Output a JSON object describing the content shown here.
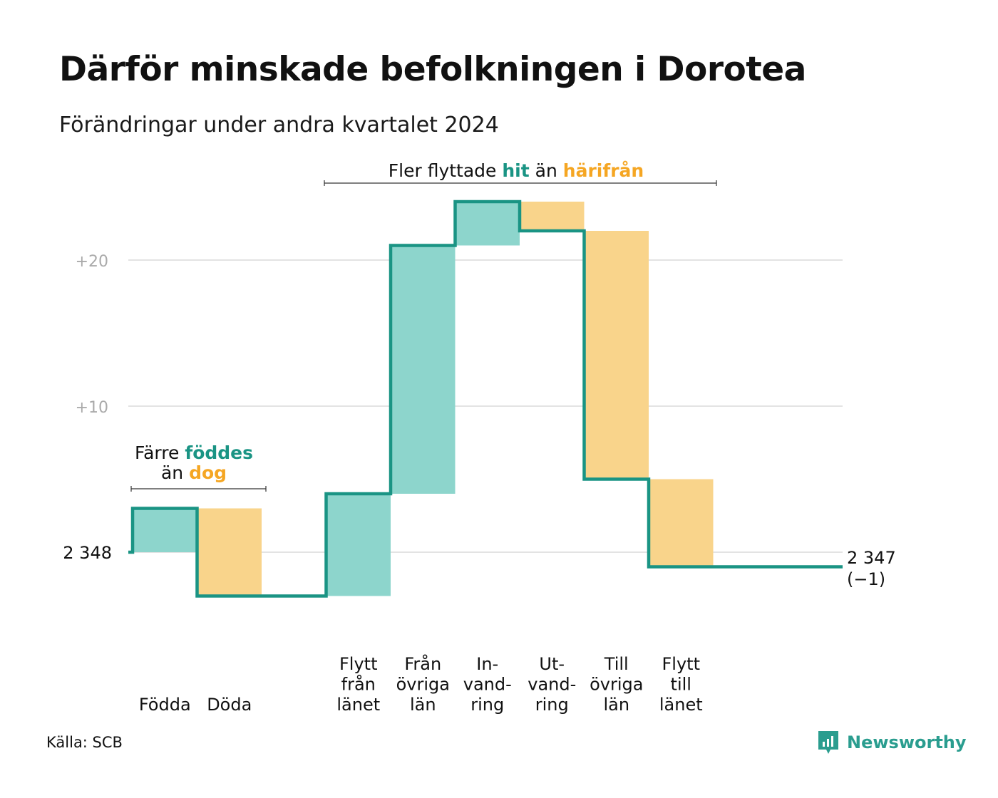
{
  "title": "Därför minskade befolkningen i Dorotea",
  "subtitle": "Förändringar under andra kvartalet 2024",
  "source": "Källa: SCB",
  "logo": "Newsworthy",
  "annotations": {
    "migration": {
      "pre": "Fler flyttade",
      "hi1": "hit",
      "mid": "än",
      "hi2": "härifrån"
    },
    "natural": {
      "line1_pre": "Färre",
      "line1_hi": "föddes",
      "line2_pre": "än",
      "line2_hi": "dog"
    }
  },
  "colors": {
    "line": "#1a9484",
    "positive": "#8dd5cc",
    "negative": "#f9d48b",
    "positive_text": "#1a9484",
    "negative_text": "#f5a623",
    "grid": "#e3e3e3",
    "tick": "#aaaaaa"
  },
  "chart_data": {
    "type": "waterfall",
    "baseline": 2348,
    "start_label": "2 348",
    "end_label": "2 347",
    "end_change_label": "(−1)",
    "yticks": [
      {
        "value": 0,
        "label": "2 348"
      },
      {
        "value": 10,
        "label": "+10"
      },
      {
        "value": 20,
        "label": "+20"
      }
    ],
    "steps": [
      {
        "label": [
          "Födda"
        ],
        "change": 3
      },
      {
        "label": [
          "Döda"
        ],
        "change": -6
      },
      {
        "label": [],
        "change": 0
      },
      {
        "label": [
          "Flytt",
          "från",
          "länet"
        ],
        "change": 7
      },
      {
        "label": [
          "Från",
          "övriga",
          "län"
        ],
        "change": 17
      },
      {
        "label": [
          "In-",
          "vand-",
          "ring"
        ],
        "change": 3
      },
      {
        "label": [
          "Ut-",
          "vand-",
          "ring"
        ],
        "change": -2
      },
      {
        "label": [
          "Till",
          "övriga",
          "län"
        ],
        "change": -17
      },
      {
        "label": [
          "Flytt",
          "till",
          "länet"
        ],
        "change": -6
      }
    ],
    "end_value": 2347
  }
}
